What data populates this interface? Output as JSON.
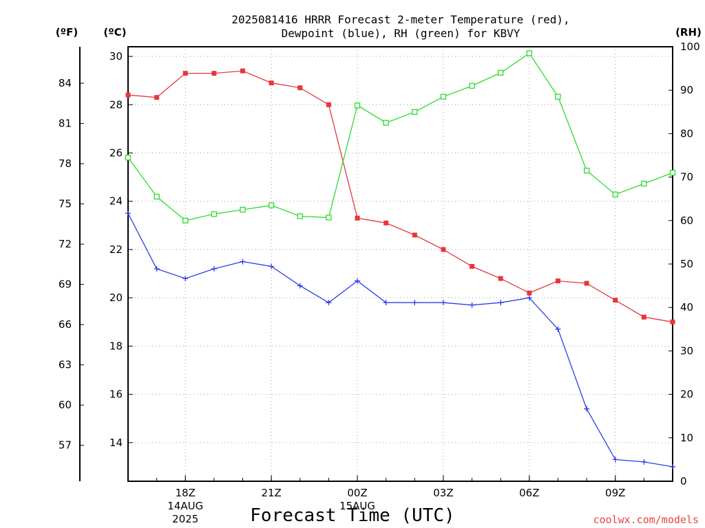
{
  "chart_data": {
    "type": "line",
    "title_line1": "2025081416 HRRR Forecast 2-meter Temperature (red),",
    "title_line2": "Dewpoint (blue), RH (green) for KBVY",
    "xlabel": "Forecast Time (UTC)",
    "credit": "coolwx.com/models",
    "unit_f": "(ºF)",
    "unit_c": "(ºC)",
    "unit_rh": "(RH)",
    "x_hours": [
      16,
      17,
      18,
      19,
      20,
      21,
      22,
      23,
      24,
      25,
      26,
      27,
      28,
      29,
      30,
      31,
      32,
      33,
      34,
      35
    ],
    "xlim": [
      16,
      35
    ],
    "x_ticks": [
      {
        "hour": 18,
        "label": "18Z",
        "sub1": "14AUG",
        "sub2": "2025"
      },
      {
        "hour": 21,
        "label": "21Z",
        "sub1": "",
        "sub2": ""
      },
      {
        "hour": 24,
        "label": "00Z",
        "sub1": "15AUG",
        "sub2": ""
      },
      {
        "hour": 27,
        "label": "03Z",
        "sub1": "",
        "sub2": ""
      },
      {
        "hour": 30,
        "label": "06Z",
        "sub1": "",
        "sub2": ""
      },
      {
        "hour": 33,
        "label": "09Z",
        "sub1": "",
        "sub2": ""
      }
    ],
    "y_left_c": {
      "lim": [
        12.4,
        30.4
      ],
      "ticks": [
        "30",
        "28",
        "26",
        "24",
        "22",
        "20",
        "18",
        "16",
        "14"
      ]
    },
    "y_left_f": {
      "ticks": [
        "84",
        "81",
        "78",
        "75",
        "72",
        "69",
        "66",
        "63",
        "60",
        "57"
      ]
    },
    "y_right_rh": {
      "lim": [
        0,
        100
      ],
      "ticks": [
        "100",
        "90",
        "80",
        "70",
        "60",
        "50",
        "40",
        "30",
        "20",
        "10",
        "0"
      ]
    },
    "grid": true,
    "series": [
      {
        "key": "temp",
        "color": "#e8363a",
        "marker": "filled-square",
        "values": [
          28.4,
          28.3,
          29.3,
          29.3,
          29.4,
          28.9,
          28.7,
          28.0,
          23.3,
          23.1,
          22.6,
          22.0,
          21.3,
          20.8,
          20.2,
          20.7,
          20.6,
          19.9,
          19.2,
          19.0
        ]
      },
      {
        "key": "dewpoint",
        "color": "#2b3de8",
        "marker": "plus",
        "values": [
          23.5,
          21.2,
          20.8,
          21.2,
          21.5,
          21.3,
          20.5,
          19.8,
          20.7,
          19.8,
          19.8,
          19.8,
          19.7,
          19.8,
          20.0,
          18.7,
          15.4,
          13.3,
          13.2,
          13.0
        ]
      },
      {
        "key": "rh",
        "color": "#2ddb2d",
        "marker": "open-square",
        "axis": "right",
        "values": [
          74.5,
          65.5,
          60.0,
          61.5,
          62.5,
          63.5,
          61.0,
          60.7,
          86.5,
          82.5,
          85.0,
          88.5,
          91.0,
          94.0,
          98.5,
          88.5,
          71.5,
          66.0,
          68.5,
          71.0
        ]
      }
    ]
  }
}
